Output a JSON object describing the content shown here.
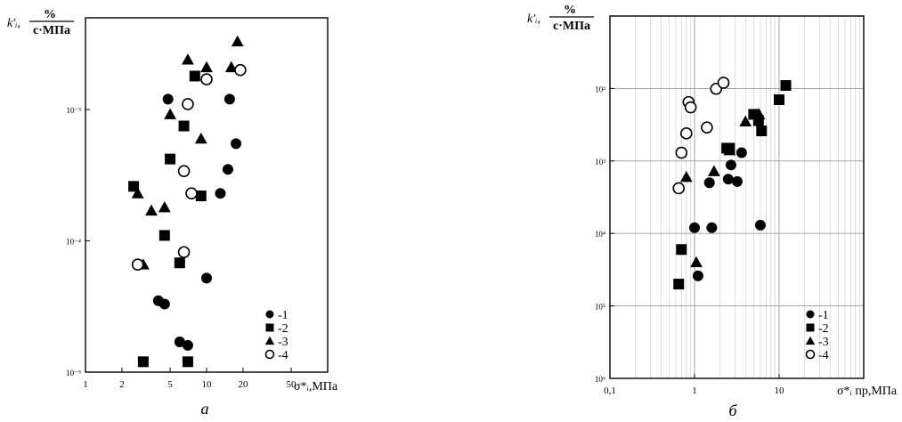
{
  "chart_data": [
    {
      "type": "scatter",
      "panel_label": "а",
      "xscale": "log",
      "yscale": "log",
      "xlim": [
        1,
        100
      ],
      "ylim": [
        1e-05,
        0.005
      ],
      "grid": false,
      "legend_position": "bottom-right",
      "x_ticks": [
        {
          "value": 1,
          "label": "1"
        },
        {
          "value": 2,
          "label": "2"
        },
        {
          "value": 5,
          "label": "5"
        },
        {
          "value": 10,
          "label": "10"
        },
        {
          "value": 20,
          "label": "20"
        },
        {
          "value": 50,
          "label": "50"
        }
      ],
      "y_ticks": [
        {
          "value": 1e-05,
          "label": "10⁻⁵"
        },
        {
          "value": 0.0001,
          "label": "10⁻⁴"
        },
        {
          "value": 0.001,
          "label": "10⁻³"
        }
      ],
      "ylabel": {
        "symbol": "k′ᵢ,",
        "num": "%",
        "den": "с·МПа"
      },
      "xlabel": "σ*ᵢ,МПа",
      "series": [
        {
          "name": "-1",
          "marker": "filled-circle",
          "x": [
            4.8,
            15.5,
            17.5,
            15,
            13,
            10,
            4,
            4.5,
            6,
            7
          ],
          "y": [
            0.0012,
            0.0012,
            0.00055,
            0.00035,
            0.00023,
            5.2e-05,
            3.5e-05,
            3.3e-05,
            1.7e-05,
            1.6e-05
          ]
        },
        {
          "name": "-2",
          "marker": "filled-square",
          "x": [
            2.5,
            5,
            6.5,
            8,
            9,
            4.5,
            6,
            7,
            3
          ],
          "y": [
            0.00026,
            0.00042,
            0.00075,
            0.0018,
            0.00022,
            0.00011,
            6.8e-05,
            1.2e-05,
            1.2e-05
          ]
        },
        {
          "name": "-3",
          "marker": "filled-triangle",
          "x": [
            2.7,
            3.5,
            4.5,
            7,
            9,
            10,
            16,
            18,
            5,
            3
          ],
          "y": [
            0.00023,
            0.00017,
            0.00018,
            0.0024,
            0.0006,
            0.0021,
            0.0021,
            0.0033,
            0.00092,
            6.6e-05
          ]
        },
        {
          "name": "-4",
          "marker": "open-circle",
          "x": [
            2.7,
            6.5,
            7.5,
            7,
            10,
            19,
            6.5
          ],
          "y": [
            6.6e-05,
            0.00034,
            0.00023,
            0.0011,
            0.0017,
            0.002,
            8.2e-05
          ]
        }
      ]
    },
    {
      "type": "scatter",
      "panel_label": "б",
      "xscale": "log",
      "yscale": "log",
      "xlim": [
        0.1,
        100
      ],
      "ylim": [
        1e-06,
        0.1
      ],
      "grid": true,
      "legend_position": "bottom-right",
      "x_ticks": [
        {
          "value": 0.1,
          "label": "0,1"
        },
        {
          "value": 1,
          "label": "1"
        },
        {
          "value": 10,
          "label": "10"
        }
      ],
      "y_ticks": [
        {
          "value": 1e-06,
          "label": "10⁶"
        },
        {
          "value": 1e-05,
          "label": "10⁵"
        },
        {
          "value": 0.0001,
          "label": "10⁴"
        },
        {
          "value": 0.001,
          "label": "10³"
        },
        {
          "value": 0.01,
          "label": "10²"
        }
      ],
      "ylabel": {
        "symbol": "k′ᵢ,",
        "num": "%",
        "den": "с·МПа"
      },
      "xlabel": "σ*ᵢ пр,МПа",
      "series": [
        {
          "name": "-1",
          "marker": "filled-circle",
          "x": [
            1,
            1.1,
            1.5,
            1.6,
            2.5,
            2.7,
            3.2,
            3.6,
            6
          ],
          "y": [
            0.00012,
            2.6e-05,
            0.0005,
            0.00012,
            0.00056,
            0.00088,
            0.00052,
            0.0013,
            0.00013
          ]
        },
        {
          "name": "-2",
          "marker": "filled-square",
          "x": [
            0.65,
            0.7,
            2.4,
            2.6,
            5,
            5.7,
            6.2,
            10,
            12
          ],
          "y": [
            2e-05,
            6e-05,
            0.0015,
            0.0015,
            0.0044,
            0.0036,
            0.0026,
            0.007,
            0.011
          ]
        },
        {
          "name": "-3",
          "marker": "filled-triangle",
          "x": [
            0.8,
            1.05,
            1.7,
            2.6,
            4,
            5.8
          ],
          "y": [
            0.0006,
            4e-05,
            0.00072,
            0.0014,
            0.0035,
            0.0044
          ]
        },
        {
          "name": "-4",
          "marker": "open-circle",
          "x": [
            0.65,
            0.7,
            0.8,
            0.85,
            0.9,
            1.4,
            1.8,
            2.2
          ],
          "y": [
            0.00042,
            0.0013,
            0.0024,
            0.0065,
            0.0055,
            0.0029,
            0.0099,
            0.012
          ]
        }
      ]
    }
  ]
}
